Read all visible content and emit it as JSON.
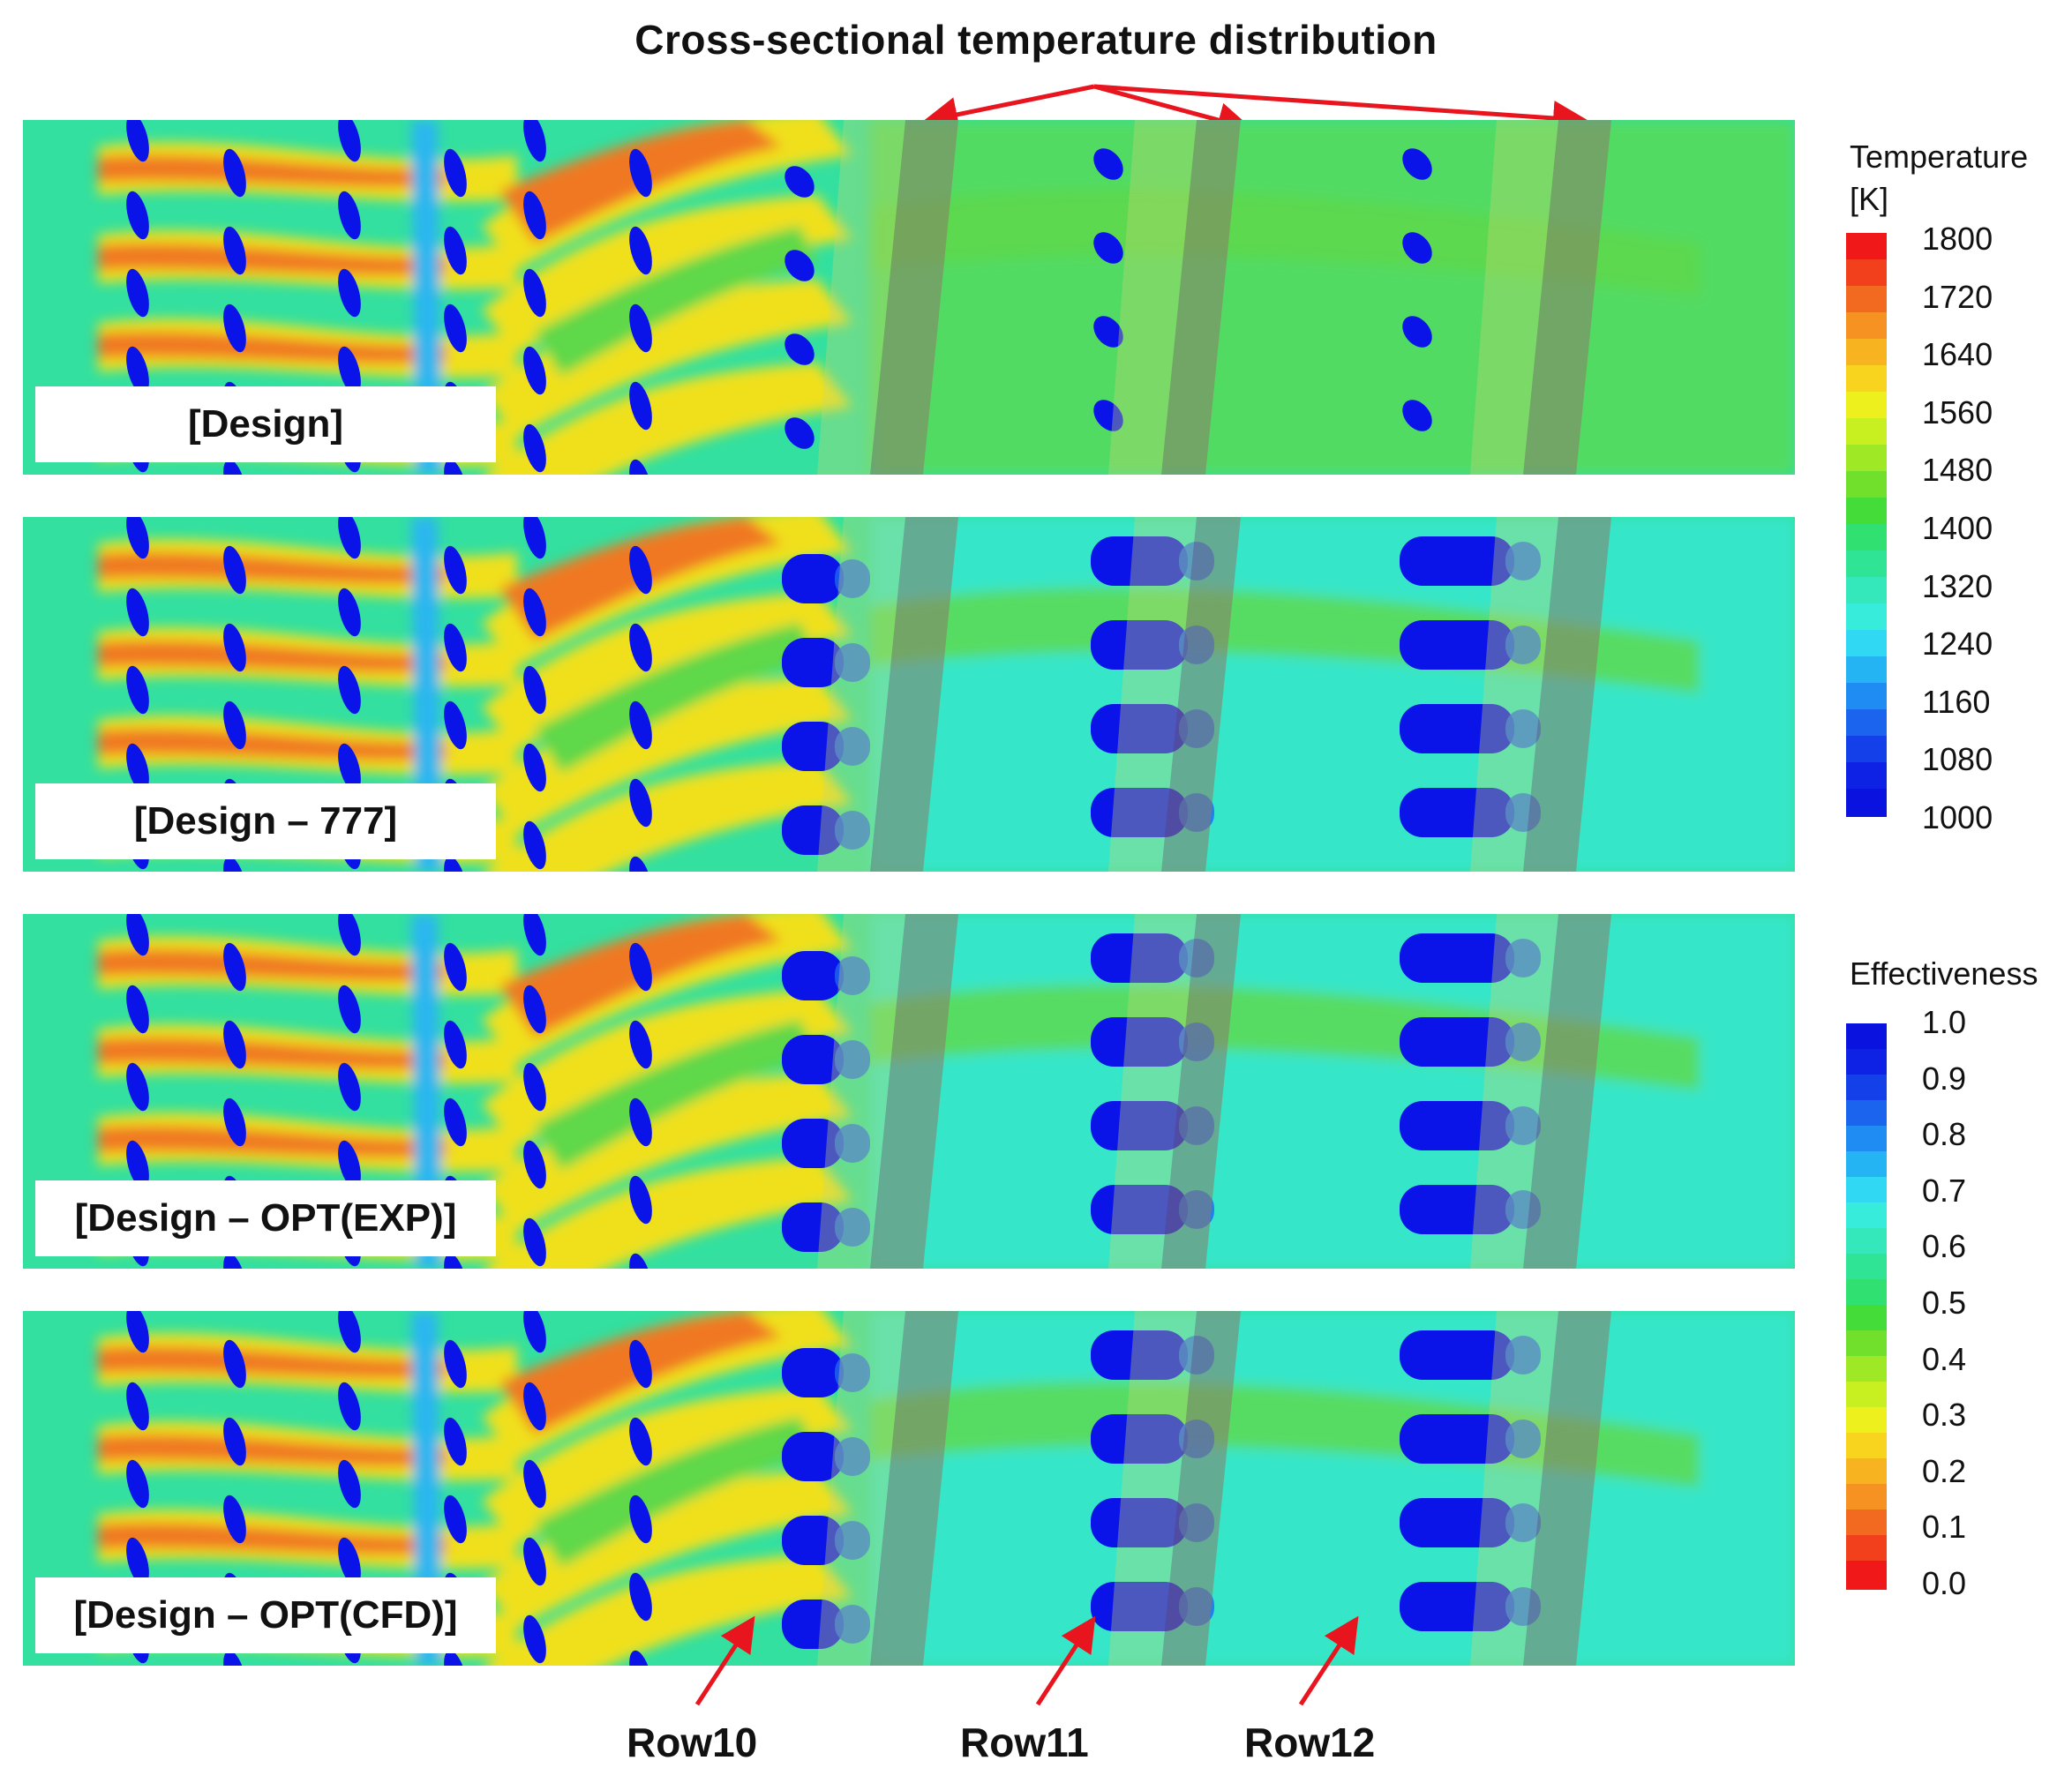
{
  "title": "Cross-sectional temperature distribution",
  "panels": [
    {
      "label": "[Design]"
    },
    {
      "label": "[Design – 777]"
    },
    {
      "label": "[Design – OPT(EXP)]"
    },
    {
      "label": "[Design – OPT(CFD)]"
    }
  ],
  "rows": [
    "Row10",
    "Row11",
    "Row12"
  ],
  "temperature_legend": {
    "title_line1": "Temperature",
    "title_line2": "[K]",
    "ticks": [
      "1800",
      "1720",
      "1640",
      "1560",
      "1480",
      "1400",
      "1320",
      "1240",
      "1160",
      "1080",
      "1000"
    ]
  },
  "effectiveness_legend": {
    "title": "Effectiveness",
    "ticks": [
      "1.0",
      "0.9",
      "0.8",
      "0.7",
      "0.6",
      "0.5",
      "0.4",
      "0.3",
      "0.2",
      "0.1",
      "0.0"
    ]
  },
  "colors": {
    "hot": "#e0302a",
    "orange": "#f07820",
    "yellow": "#f0e01e",
    "green": "#5fd84a",
    "teal": "#33e0a0",
    "cyan": "#38e8d8",
    "cool": "#1f66f0",
    "coldest": "#0a14e8",
    "arrow": "#e8141e",
    "band": "#8a7a6a"
  }
}
